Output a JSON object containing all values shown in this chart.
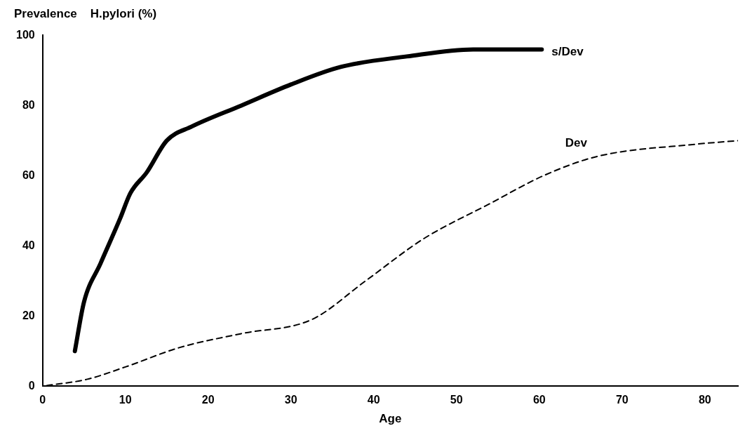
{
  "chart_data": {
    "type": "line",
    "title": "Prevalence    H.pylori (%)",
    "xlabel": "Age",
    "xlim": [
      0,
      84
    ],
    "xticks": [
      0,
      10,
      20,
      30,
      40,
      50,
      60,
      70,
      80
    ],
    "ylim": [
      0,
      100
    ],
    "yticks": [
      0,
      20,
      40,
      60,
      80,
      100
    ],
    "grid": false,
    "legend": false,
    "marker": "none",
    "series": [
      {
        "name": "s/Dev",
        "color": "#000000",
        "line_style": "solid",
        "x": [
          3.9,
          5,
          7,
          9.4,
          10.6,
          12.6,
          15,
          18,
          24,
          30,
          36,
          44,
          52,
          60.3
        ],
        "values": [
          10,
          24,
          35,
          48,
          55,
          61,
          70,
          74,
          80,
          86,
          91,
          94,
          96,
          96
        ]
      },
      {
        "name": "Dev",
        "color": "#000000",
        "line_style": "dashed",
        "x": [
          0.5,
          5.4,
          10,
          16.5,
          24,
          32.5,
          39,
          46,
          54,
          60.5,
          67,
          79,
          84
        ],
        "values": [
          0.2,
          2,
          5.5,
          11,
          15,
          19,
          30,
          42,
          52,
          60,
          65.5,
          69,
          70
        ]
      }
    ]
  }
}
